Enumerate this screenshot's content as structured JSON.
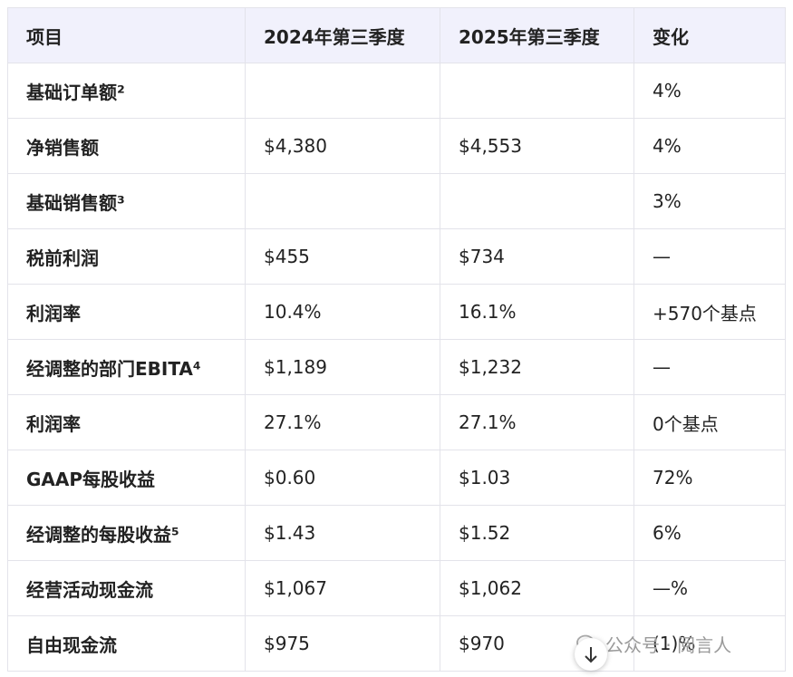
{
  "table": {
    "header": [
      "项目",
      "2024年第三季度",
      "2025年第三季度",
      "变化"
    ],
    "rows": [
      [
        "基础订单额²",
        null,
        null,
        "4%"
      ],
      [
        "净销售额",
        "$4,380",
        "$4,553",
        "4%"
      ],
      [
        "基础销售额³",
        null,
        null,
        "3%"
      ],
      [
        "税前利润",
        "$455",
        "$734",
        "—"
      ],
      [
        "利润率",
        "10.4%",
        "16.1%",
        "+570个基点"
      ],
      [
        "经调整的部门EBITA⁴",
        "$1,189",
        "$1,232",
        "—"
      ],
      [
        "利润率",
        "27.1%",
        "27.1%",
        "0个基点"
      ],
      [
        "GAAP每股收益",
        "$0.60",
        "$1.03",
        "72%"
      ],
      [
        "经调整的每股收益⁵",
        "$1.43",
        "$1.52",
        "6%"
      ],
      [
        "经营活动现金流",
        "$1,067",
        "$1,062",
        "—%"
      ],
      [
        "自由现金流",
        "$975",
        "$970",
        "(1)%"
      ]
    ]
  },
  "watermark": "公众号 · 阅言人"
}
